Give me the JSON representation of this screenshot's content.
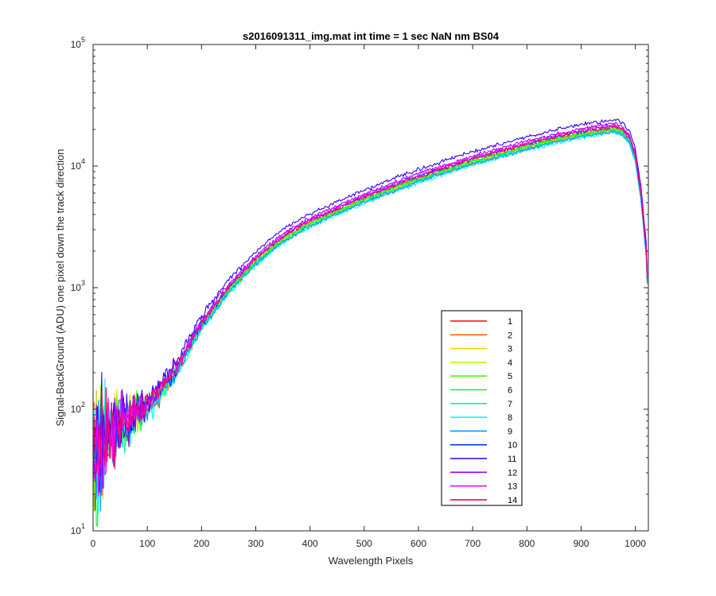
{
  "chart_data": {
    "type": "line",
    "title": "s2016091311_img.mat int time = 1 sec  NaN nm BS04",
    "xlabel": "Wavelength Pixels",
    "ylabel": "Signal-BackGround (ADU) one pixel down the track direction",
    "xlim": [
      0,
      1024
    ],
    "ylim": [
      10,
      100000
    ],
    "yscale": "log",
    "x_ticks": [
      0,
      100,
      200,
      300,
      400,
      500,
      600,
      700,
      800,
      900,
      1000
    ],
    "y_ticks": [
      {
        "value": 10,
        "base": "10",
        "exp": "1"
      },
      {
        "value": 100,
        "base": "10",
        "exp": "2"
      },
      {
        "value": 1000,
        "base": "10",
        "exp": "3"
      },
      {
        "value": 10000,
        "base": "10",
        "exp": "4"
      },
      {
        "value": 100000,
        "base": "10",
        "exp": "5"
      }
    ],
    "grid": false,
    "legend_position": "bottom-right",
    "x": [
      0,
      20,
      50,
      100,
      150,
      200,
      250,
      300,
      350,
      400,
      450,
      500,
      550,
      600,
      650,
      700,
      750,
      800,
      850,
      900,
      940,
      960,
      975,
      990,
      1000,
      1010,
      1020,
      1023
    ],
    "base_curve": [
      40,
      55,
      75,
      105,
      200,
      500,
      1000,
      1700,
      2600,
      3500,
      4400,
      5500,
      6700,
      8100,
      9600,
      11300,
      13000,
      15000,
      17000,
      19000,
      20200,
      20800,
      20000,
      16500,
      12000,
      6000,
      2000,
      900
    ],
    "series": [
      {
        "name": "1",
        "color": "#ff0000",
        "scale": 0.97
      },
      {
        "name": "2",
        "color": "#ff6600",
        "scale": 0.93
      },
      {
        "name": "3",
        "color": "#ffcc00",
        "scale": 0.95
      },
      {
        "name": "4",
        "color": "#b3ff00",
        "scale": 0.96
      },
      {
        "name": "5",
        "color": "#4dff00",
        "scale": 0.98
      },
      {
        "name": "6",
        "color": "#00ff33",
        "scale": 0.97
      },
      {
        "name": "7",
        "color": "#00ff99",
        "scale": 0.93
      },
      {
        "name": "8",
        "color": "#00ffff",
        "scale": 0.9
      },
      {
        "name": "9",
        "color": "#0099ff",
        "scale": 0.92
      },
      {
        "name": "10",
        "color": "#0033ff",
        "scale": 1.02
      },
      {
        "name": "11",
        "color": "#3300ff",
        "scale": 1.16
      },
      {
        "name": "12",
        "color": "#9900ff",
        "scale": 1.07
      },
      {
        "name": "13",
        "color": "#ff00ff",
        "scale": 1.04
      },
      {
        "name": "14",
        "color": "#ff0066",
        "scale": 1.01
      }
    ]
  }
}
